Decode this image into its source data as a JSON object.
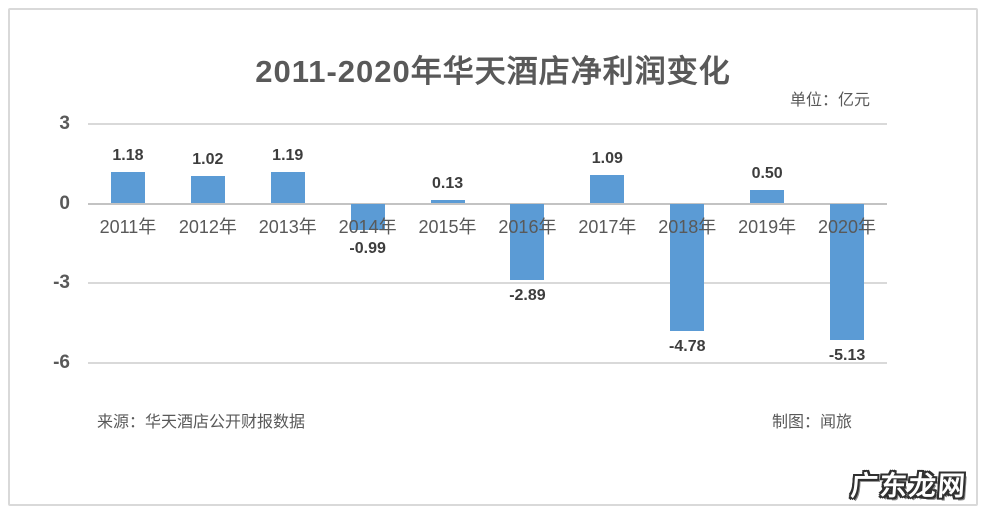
{
  "chart_data": {
    "type": "bar",
    "title": "2011-2020年华天酒店净利润变化",
    "unit_label": "单位：亿元",
    "categories": [
      "2011年",
      "2012年",
      "2013年",
      "2014年",
      "2015年",
      "2016年",
      "2017年",
      "2018年",
      "2019年",
      "2020年"
    ],
    "values": [
      1.18,
      1.02,
      1.19,
      -0.99,
      0.13,
      -2.89,
      1.09,
      -4.78,
      0.5,
      -5.13
    ],
    "value_labels": [
      "1.18",
      "1.02",
      "1.19",
      "-0.99",
      "0.13",
      "-2.89",
      "1.09",
      "-4.78",
      "0.50",
      "-5.13"
    ],
    "yticks": [
      3,
      0,
      -3,
      -6
    ],
    "ylim": [
      -6,
      3
    ],
    "grid": true,
    "legend": "none",
    "xlabel": "",
    "ylabel": ""
  },
  "footer": {
    "source": "来源：华天酒店公开财报数据",
    "credit": "制图：闻旅"
  },
  "watermark": "广东龙网",
  "colors": {
    "bar": "#5b9bd5",
    "gridline": "#d9d9d9",
    "zero_line": "#c3c3c3",
    "text_gray": "#595959",
    "value_label": "#3d3d3d",
    "frame_border": "#d9d9d9"
  }
}
